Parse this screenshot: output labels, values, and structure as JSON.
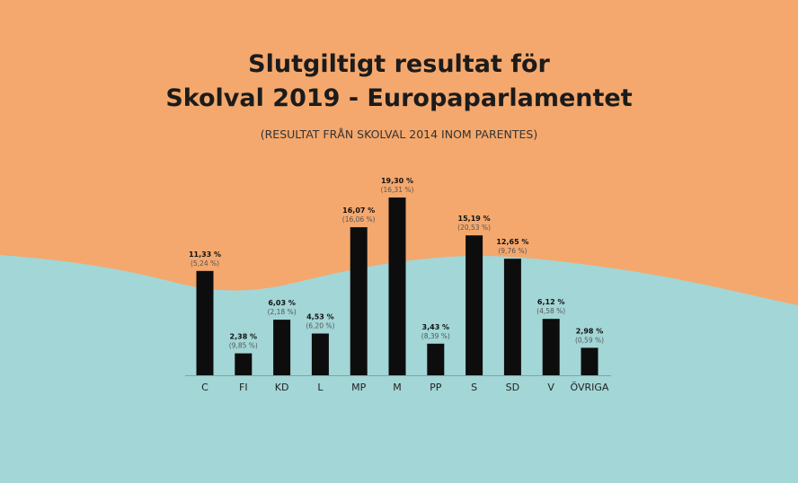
{
  "title_line1": "Slutgiltigt resultat för",
  "title_line2": "Skolval 2019 - Europaparlamentet",
  "subtitle": "(RESULTAT FRÅN SKOLVAL 2014 INOM PARENTES)",
  "colors": {
    "top_bg": "#f4a86d",
    "bottom_bg": "#a3d6d6",
    "bar": "#0d0d0d",
    "axis": "#999999"
  },
  "chart_data": {
    "type": "bar",
    "categories": [
      "C",
      "FI",
      "KD",
      "L",
      "MP",
      "M",
      "PP",
      "S",
      "SD",
      "V",
      "ÖVRIGA"
    ],
    "values": [
      11.33,
      2.38,
      6.03,
      4.53,
      16.07,
      19.3,
      3.43,
      15.19,
      12.65,
      6.12,
      2.98
    ],
    "value_labels": [
      "11,33 %",
      "2,38 %",
      "6,03 %",
      "4,53 %",
      "16,07 %",
      "19,30 %",
      "3,43 %",
      "15,19 %",
      "12,65 %",
      "6,12 %",
      "2,98 %"
    ],
    "previous_labels": [
      "(5,24 %)",
      "(9,85 %)",
      "(2,18 %)",
      "(6,20 %)",
      "(16,06 %)",
      "(16,31 %)",
      "(8,39 %)",
      "(20,53 %)",
      "(9,76 %)",
      "(4,58 %)",
      "(0,59 %)"
    ],
    "ylim": [
      0,
      19.3
    ],
    "grid": false,
    "legend": "none"
  }
}
